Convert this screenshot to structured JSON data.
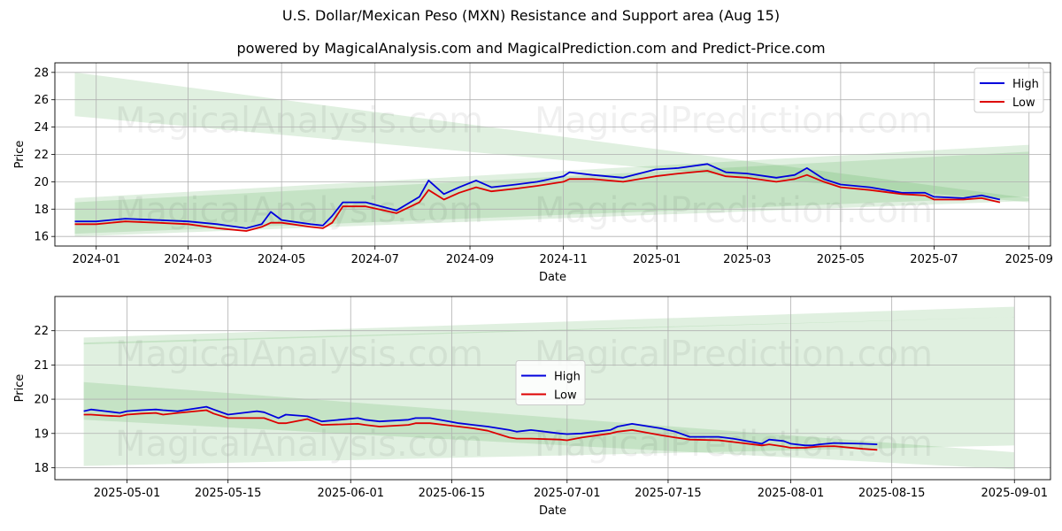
{
  "title": "U.S. Dollar/Mexican Peso (MXN) Resistance and Support area (Aug 15)",
  "subtitle": "powered by MagicalAnalysis.com and MagicalPrediction.com and Predict-Price.com",
  "watermarks": [
    "MagicalAnalysis.com",
    "MagicalPrediction.com"
  ],
  "colors": {
    "high": "#0000dd",
    "low": "#dd0000",
    "band": "#2e9c2e",
    "grid": "#b0b0b0"
  },
  "chart_data": [
    {
      "type": "line",
      "xlabel": "Date",
      "ylabel": "Price",
      "xlim": [
        "2023-12-05",
        "2025-09-15"
      ],
      "ylim": [
        15.3,
        28.7
      ],
      "yticks": [
        16,
        18,
        20,
        22,
        24,
        26,
        28
      ],
      "xticks": [
        "2024-01",
        "2024-03",
        "2024-05",
        "2024-07",
        "2024-09",
        "2024-11",
        "2025-01",
        "2025-03",
        "2025-05",
        "2025-07",
        "2025-09"
      ],
      "xtick_dates": [
        "2024-01-01",
        "2024-03-01",
        "2024-05-01",
        "2024-07-01",
        "2024-09-01",
        "2024-11-01",
        "2025-01-01",
        "2025-03-01",
        "2025-05-01",
        "2025-07-01",
        "2025-09-01"
      ],
      "grid": true,
      "legend": "top-right",
      "series": [
        {
          "name": "High",
          "x": [
            "2023-12-18",
            "2024-01-01",
            "2024-01-20",
            "2024-02-10",
            "2024-03-01",
            "2024-03-20",
            "2024-04-08",
            "2024-04-18",
            "2024-04-24",
            "2024-05-01",
            "2024-05-20",
            "2024-05-28",
            "2024-06-03",
            "2024-06-10",
            "2024-06-25",
            "2024-07-15",
            "2024-07-30",
            "2024-08-05",
            "2024-08-15",
            "2024-08-25",
            "2024-09-05",
            "2024-09-15",
            "2024-10-01",
            "2024-10-15",
            "2024-11-01",
            "2024-11-05",
            "2024-11-20",
            "2024-12-10",
            "2024-12-31",
            "2025-01-15",
            "2025-02-03",
            "2025-02-15",
            "2025-03-01",
            "2025-03-20",
            "2025-04-01",
            "2025-04-09",
            "2025-04-20",
            "2025-05-01",
            "2025-05-20",
            "2025-06-10",
            "2025-06-25",
            "2025-07-01",
            "2025-07-20",
            "2025-08-01",
            "2025-08-13"
          ],
          "values": [
            17.1,
            17.1,
            17.3,
            17.2,
            17.1,
            16.9,
            16.6,
            16.9,
            17.8,
            17.2,
            16.9,
            16.8,
            17.5,
            18.5,
            18.5,
            17.9,
            18.9,
            20.1,
            19.1,
            19.6,
            20.1,
            19.6,
            19.8,
            20.0,
            20.4,
            20.7,
            20.5,
            20.3,
            20.9,
            21.0,
            21.3,
            20.7,
            20.6,
            20.3,
            20.5,
            21.0,
            20.2,
            19.8,
            19.6,
            19.2,
            19.2,
            18.9,
            18.8,
            19.0,
            18.7
          ]
        },
        {
          "name": "Low",
          "x": [
            "2023-12-18",
            "2024-01-01",
            "2024-01-20",
            "2024-02-10",
            "2024-03-01",
            "2024-03-20",
            "2024-04-08",
            "2024-04-18",
            "2024-04-24",
            "2024-05-01",
            "2024-05-20",
            "2024-05-28",
            "2024-06-03",
            "2024-06-10",
            "2024-06-25",
            "2024-07-15",
            "2024-07-30",
            "2024-08-05",
            "2024-08-15",
            "2024-08-25",
            "2024-09-05",
            "2024-09-15",
            "2024-10-01",
            "2024-10-15",
            "2024-11-01",
            "2024-11-05",
            "2024-11-20",
            "2024-12-10",
            "2024-12-31",
            "2025-01-15",
            "2025-02-03",
            "2025-02-15",
            "2025-03-01",
            "2025-03-20",
            "2025-04-01",
            "2025-04-09",
            "2025-04-20",
            "2025-05-01",
            "2025-05-20",
            "2025-06-10",
            "2025-06-25",
            "2025-07-01",
            "2025-07-20",
            "2025-08-01",
            "2025-08-13"
          ],
          "values": [
            16.9,
            16.9,
            17.1,
            17.0,
            16.9,
            16.6,
            16.4,
            16.7,
            17.0,
            17.0,
            16.7,
            16.6,
            17.0,
            18.2,
            18.2,
            17.7,
            18.5,
            19.4,
            18.7,
            19.2,
            19.6,
            19.3,
            19.5,
            19.7,
            20.0,
            20.2,
            20.2,
            20.0,
            20.4,
            20.6,
            20.8,
            20.4,
            20.3,
            20.0,
            20.2,
            20.5,
            20.0,
            19.6,
            19.4,
            19.1,
            19.0,
            18.7,
            18.7,
            18.8,
            18.5
          ]
        }
      ],
      "bands": [
        {
          "x": [
            "2023-12-18",
            "2025-09-01"
          ],
          "upper": [
            28.0,
            18.8
          ],
          "lower": [
            24.8,
            18.5
          ]
        },
        {
          "x": [
            "2023-12-18",
            "2025-09-01"
          ],
          "upper": [
            18.8,
            22.7
          ],
          "lower": [
            16.0,
            18.6
          ]
        },
        {
          "x": [
            "2023-12-18",
            "2025-09-01"
          ],
          "upper": [
            18.5,
            22.2
          ],
          "lower": [
            16.2,
            18.9
          ]
        }
      ]
    },
    {
      "type": "line",
      "xlabel": "Date",
      "ylabel": "Price",
      "xlim": [
        "2025-04-21",
        "2025-09-06"
      ],
      "ylim": [
        17.65,
        23.0
      ],
      "yticks": [
        18,
        19,
        20,
        21,
        22
      ],
      "xticks": [
        "2025-05-01",
        "2025-05-15",
        "2025-06-01",
        "2025-06-15",
        "2025-07-01",
        "2025-07-15",
        "2025-08-01",
        "2025-08-15",
        "2025-09-01"
      ],
      "grid": true,
      "legend": "center",
      "series": [
        {
          "name": "High",
          "x": [
            "2025-04-25",
            "2025-04-26",
            "2025-04-28",
            "2025-04-30",
            "2025-05-01",
            "2025-05-03",
            "2025-05-05",
            "2025-05-06",
            "2025-05-08",
            "2025-05-12",
            "2025-05-13",
            "2025-05-15",
            "2025-05-19",
            "2025-05-20",
            "2025-05-22",
            "2025-05-23",
            "2025-05-26",
            "2025-05-28",
            "2025-06-02",
            "2025-06-03",
            "2025-06-05",
            "2025-06-09",
            "2025-06-10",
            "2025-06-12",
            "2025-06-16",
            "2025-06-18",
            "2025-06-20",
            "2025-06-23",
            "2025-06-24",
            "2025-06-26",
            "2025-06-30",
            "2025-07-01",
            "2025-07-03",
            "2025-07-07",
            "2025-07-08",
            "2025-07-10",
            "2025-07-14",
            "2025-07-16",
            "2025-07-18",
            "2025-07-22",
            "2025-07-24",
            "2025-07-28",
            "2025-07-29",
            "2025-07-31",
            "2025-08-01",
            "2025-08-03",
            "2025-08-04",
            "2025-08-05",
            "2025-08-07",
            "2025-08-11",
            "2025-08-13"
          ],
          "values": [
            19.65,
            19.7,
            19.65,
            19.6,
            19.65,
            19.68,
            19.7,
            19.68,
            19.65,
            19.78,
            19.7,
            19.55,
            19.65,
            19.62,
            19.45,
            19.55,
            19.5,
            19.35,
            19.45,
            19.4,
            19.35,
            19.4,
            19.45,
            19.45,
            19.3,
            19.25,
            19.2,
            19.1,
            19.05,
            19.1,
            19.0,
            18.98,
            19.0,
            19.1,
            19.2,
            19.28,
            19.15,
            19.05,
            18.9,
            18.9,
            18.85,
            18.7,
            18.82,
            18.78,
            18.7,
            18.65,
            18.65,
            18.68,
            18.72,
            18.7,
            18.68
          ]
        },
        {
          "name": "Low",
          "x": [
            "2025-04-25",
            "2025-04-26",
            "2025-04-28",
            "2025-04-30",
            "2025-05-01",
            "2025-05-03",
            "2025-05-05",
            "2025-05-06",
            "2025-05-08",
            "2025-05-12",
            "2025-05-13",
            "2025-05-15",
            "2025-05-19",
            "2025-05-20",
            "2025-05-22",
            "2025-05-23",
            "2025-05-26",
            "2025-05-28",
            "2025-06-02",
            "2025-06-03",
            "2025-06-05",
            "2025-06-09",
            "2025-06-10",
            "2025-06-12",
            "2025-06-16",
            "2025-06-18",
            "2025-06-20",
            "2025-06-23",
            "2025-06-24",
            "2025-06-26",
            "2025-06-30",
            "2025-07-01",
            "2025-07-03",
            "2025-07-07",
            "2025-07-08",
            "2025-07-10",
            "2025-07-14",
            "2025-07-16",
            "2025-07-18",
            "2025-07-22",
            "2025-07-24",
            "2025-07-28",
            "2025-07-29",
            "2025-07-31",
            "2025-08-01",
            "2025-08-03",
            "2025-08-04",
            "2025-08-05",
            "2025-08-07",
            "2025-08-11",
            "2025-08-13"
          ],
          "values": [
            19.55,
            19.55,
            19.52,
            19.5,
            19.55,
            19.58,
            19.6,
            19.55,
            19.6,
            19.68,
            19.58,
            19.45,
            19.45,
            19.45,
            19.3,
            19.3,
            19.42,
            19.25,
            19.28,
            19.25,
            19.2,
            19.25,
            19.3,
            19.3,
            19.2,
            19.15,
            19.08,
            18.88,
            18.85,
            18.85,
            18.82,
            18.8,
            18.88,
            19.0,
            19.05,
            19.1,
            18.95,
            18.88,
            18.82,
            18.8,
            18.75,
            18.65,
            18.68,
            18.62,
            18.58,
            18.58,
            18.6,
            18.62,
            18.63,
            18.55,
            18.52
          ]
        }
      ],
      "bands": [
        {
          "x": [
            "2025-04-25",
            "2025-09-01"
          ],
          "upper": [
            21.8,
            22.7
          ],
          "lower": [
            21.6,
            22.4
          ]
        },
        {
          "x": [
            "2025-04-25",
            "2025-09-01"
          ],
          "upper": [
            21.65,
            22.4
          ],
          "lower": [
            18.05,
            18.65
          ]
        },
        {
          "x": [
            "2025-04-25",
            "2025-09-01"
          ],
          "upper": [
            20.5,
            18.45
          ],
          "lower": [
            19.4,
            17.95
          ]
        }
      ]
    }
  ]
}
